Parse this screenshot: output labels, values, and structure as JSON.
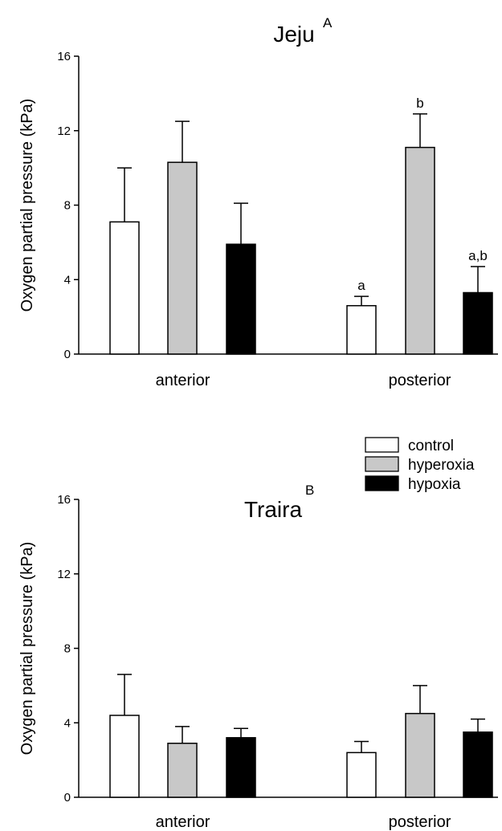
{
  "legend": {
    "items": [
      {
        "label": "control",
        "color": "#ffffff"
      },
      {
        "label": "hyperoxia",
        "color": "#c8c8c8"
      },
      {
        "label": "hypoxia",
        "color": "#000000"
      }
    ]
  },
  "chart_data": [
    {
      "type": "bar",
      "title": "Jeju",
      "title_superscript": "A",
      "ylabel": "Oxygen partial pressure (kPa)",
      "xlabel": "",
      "ylim": [
        0,
        16
      ],
      "yticks": [
        0,
        4,
        8,
        12,
        16
      ],
      "categories": [
        "anterior",
        "posterior"
      ],
      "series": [
        {
          "name": "control",
          "color": "#ffffff",
          "values": [
            7.1,
            2.6
          ],
          "errors": [
            2.9,
            0.5
          ],
          "annotations": [
            "",
            "a"
          ]
        },
        {
          "name": "hyperoxia",
          "color": "#c8c8c8",
          "values": [
            10.3,
            11.1
          ],
          "errors": [
            2.2,
            1.8
          ],
          "annotations": [
            "",
            "b"
          ]
        },
        {
          "name": "hypoxia",
          "color": "#000000",
          "values": [
            5.9,
            3.3
          ],
          "errors": [
            2.2,
            1.4
          ],
          "annotations": [
            "",
            "a,b"
          ]
        }
      ]
    },
    {
      "type": "bar",
      "title": "Traira",
      "title_superscript": "B",
      "ylabel": "Oxygen partial pressure (kPa)",
      "xlabel": "",
      "ylim": [
        0,
        16
      ],
      "yticks": [
        0,
        4,
        8,
        12,
        16
      ],
      "categories": [
        "anterior",
        "posterior"
      ],
      "series": [
        {
          "name": "control",
          "color": "#ffffff",
          "values": [
            4.4,
            2.4
          ],
          "errors": [
            2.2,
            0.6
          ],
          "annotations": [
            "",
            ""
          ]
        },
        {
          "name": "hyperoxia",
          "color": "#c8c8c8",
          "values": [
            2.9,
            4.5
          ],
          "errors": [
            0.9,
            1.5
          ],
          "annotations": [
            "",
            ""
          ]
        },
        {
          "name": "hypoxia",
          "color": "#000000",
          "values": [
            3.2,
            3.5
          ],
          "errors": [
            0.5,
            0.7
          ],
          "annotations": [
            "",
            ""
          ]
        }
      ]
    }
  ]
}
